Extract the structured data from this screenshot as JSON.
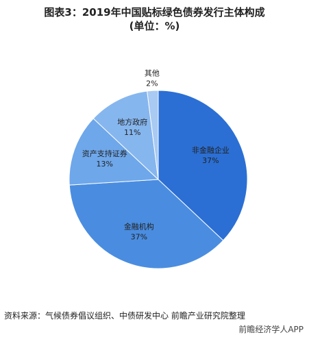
{
  "chart_data": {
    "type": "pie",
    "title": "图表3：2019年中国贴标绿色债券发行主体构成(单位：%)",
    "categories": [
      "非金融企业",
      "金融机构",
      "资产支持证券",
      "地方政府",
      "其他"
    ],
    "values": [
      37,
      37,
      13,
      11,
      2
    ],
    "value_labels": [
      "37%",
      "37%",
      "13%",
      "11%",
      "2%"
    ],
    "colors": [
      "#2b6fd4",
      "#4a8de0",
      "#6ea7ea",
      "#86b6ee",
      "#a8caf3"
    ],
    "source": "资料来源：气候债券倡议组织、中债研发中心 前瞻产业研究院整理",
    "footer": "前瞻经济学人APP"
  }
}
